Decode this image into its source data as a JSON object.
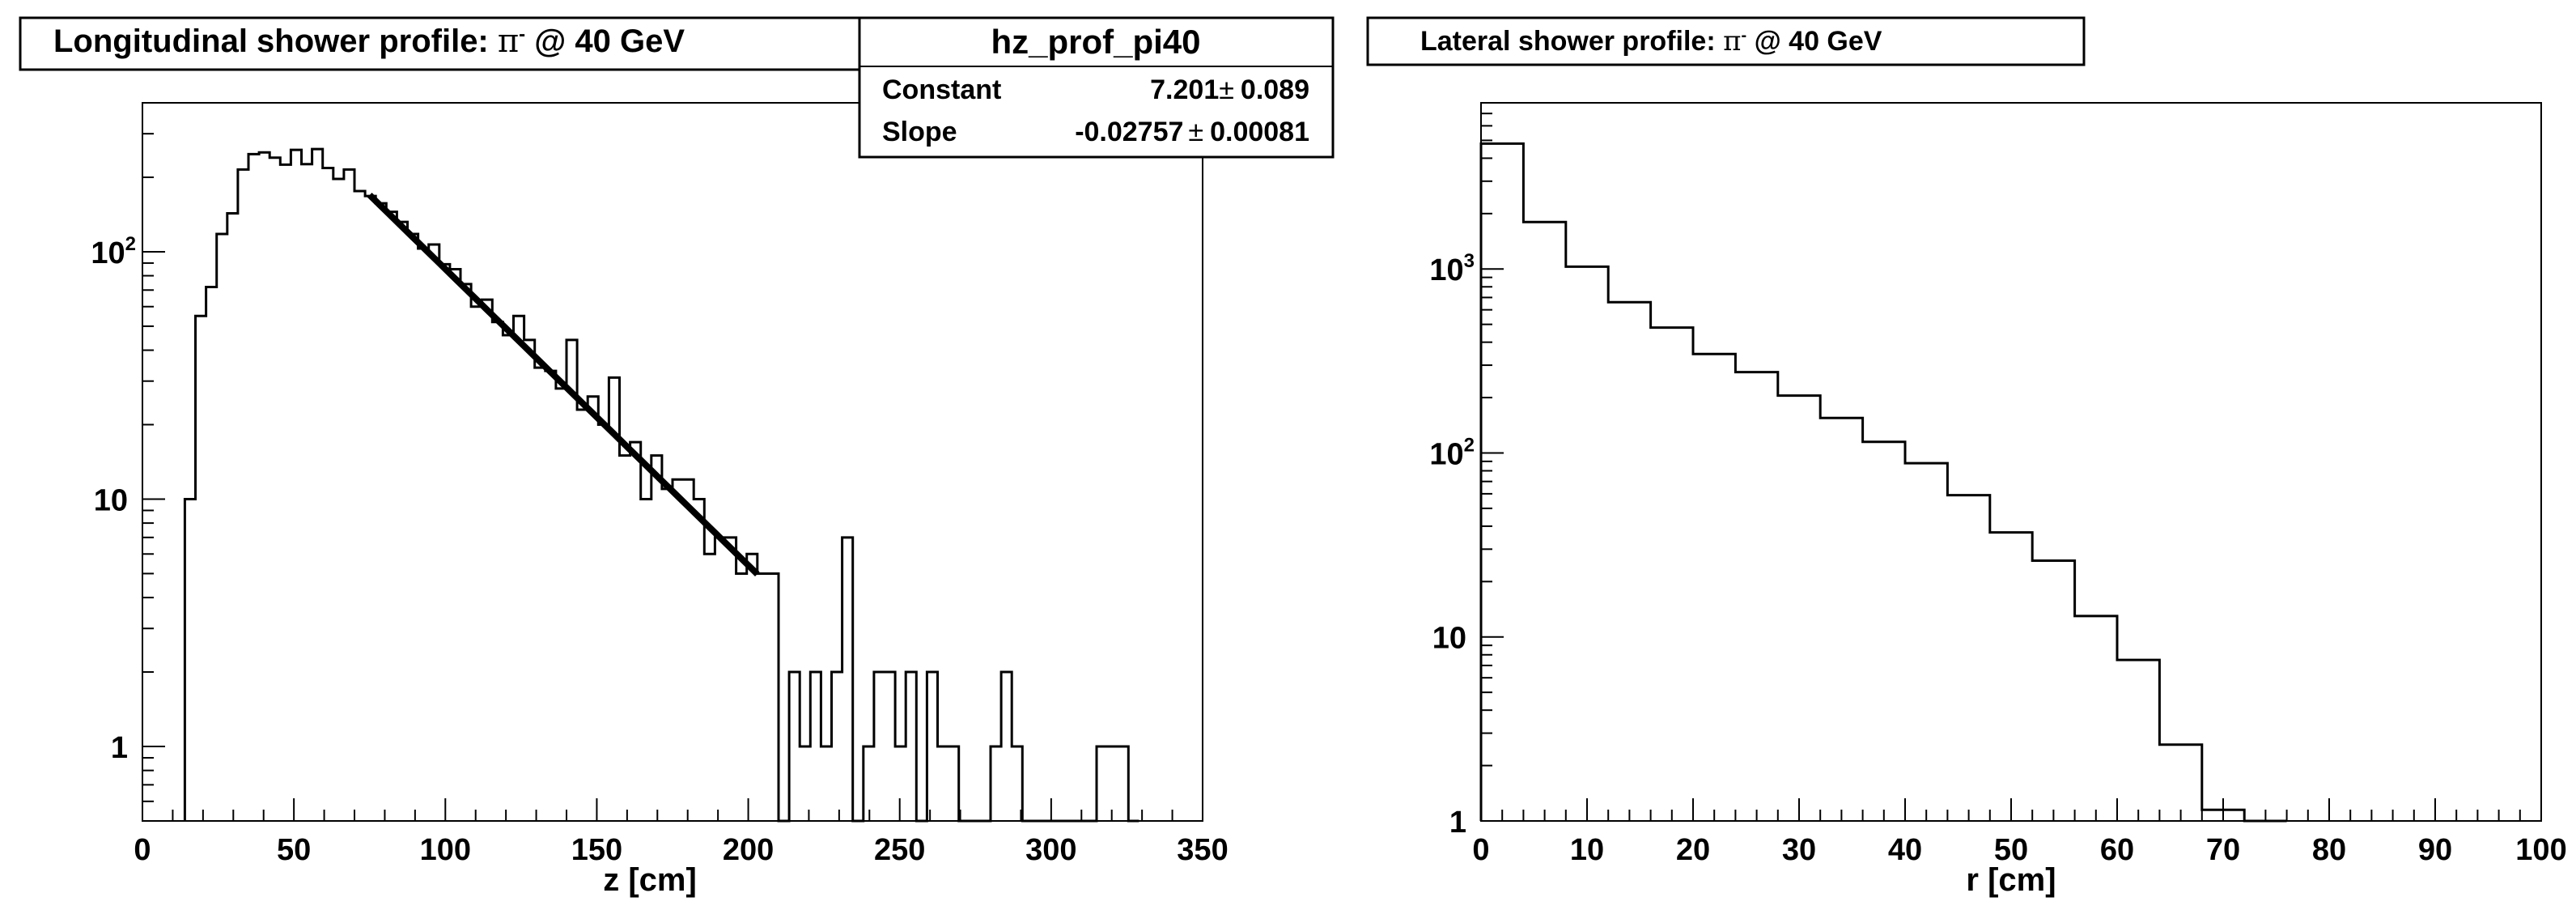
{
  "colors": {
    "line": "#000000",
    "background": "#ffffff"
  },
  "chart_data": [
    {
      "type": "histogram",
      "title": "Longitudinal shower profile: π⁻ @ 40 GeV",
      "title_parts": {
        "prefix": "Longitudinal shower profile: ",
        "particle": "π",
        "charge": "-",
        "suffix": " @ 40 GeV"
      },
      "xlabel": "z [cm]",
      "ylabel": "",
      "xlim": [
        0,
        350
      ],
      "ylim": [
        0.5,
        400
      ],
      "yscale": "log",
      "grid": false,
      "legend": "none",
      "x_ticks": [
        "0",
        "50",
        "100",
        "150",
        "200",
        "250",
        "300",
        "350"
      ],
      "y_ticks": [
        {
          "base": "1",
          "exp": ""
        },
        {
          "base": "10",
          "exp": ""
        },
        {
          "base": "10",
          "exp": "2"
        }
      ],
      "bin_width": 3.5,
      "bins": [
        [
          14,
          10
        ],
        [
          17.5,
          55
        ],
        [
          21,
          72
        ],
        [
          24.5,
          118
        ],
        [
          28,
          143
        ],
        [
          31.5,
          215
        ],
        [
          35,
          248
        ],
        [
          38.5,
          252
        ],
        [
          42,
          240
        ],
        [
          45.5,
          225
        ],
        [
          49,
          258
        ],
        [
          52.5,
          226
        ],
        [
          56,
          260
        ],
        [
          59.5,
          218
        ],
        [
          63,
          197
        ],
        [
          66.5,
          215
        ],
        [
          70,
          176
        ],
        [
          73.5,
          168
        ],
        [
          77,
          157
        ],
        [
          80.5,
          145
        ],
        [
          84,
          132
        ],
        [
          87.5,
          118
        ],
        [
          91,
          103
        ],
        [
          94.5,
          107
        ],
        [
          98,
          89
        ],
        [
          101.5,
          85
        ],
        [
          105,
          74
        ],
        [
          108.5,
          60
        ],
        [
          112,
          64
        ],
        [
          115.5,
          52
        ],
        [
          119,
          46
        ],
        [
          122.5,
          55
        ],
        [
          126,
          44
        ],
        [
          129.5,
          34
        ],
        [
          133,
          33
        ],
        [
          136.5,
          28
        ],
        [
          140,
          44
        ],
        [
          143.5,
          23
        ],
        [
          147,
          26
        ],
        [
          150.5,
          20
        ],
        [
          154,
          31
        ],
        [
          157.5,
          15
        ],
        [
          161,
          17
        ],
        [
          164.5,
          10
        ],
        [
          168,
          15
        ],
        [
          171.5,
          11
        ],
        [
          175,
          12
        ],
        [
          178.5,
          12
        ],
        [
          182,
          10
        ],
        [
          185.5,
          6
        ],
        [
          189,
          7
        ],
        [
          192.5,
          7
        ],
        [
          196,
          5
        ],
        [
          199.5,
          6
        ],
        [
          203,
          5
        ],
        [
          206.5,
          5
        ],
        [
          210,
          0
        ],
        [
          213.5,
          2
        ],
        [
          217,
          1
        ],
        [
          220.5,
          2
        ],
        [
          224,
          1
        ],
        [
          227.5,
          2
        ],
        [
          231,
          7
        ],
        [
          234.5,
          0
        ],
        [
          238,
          1
        ],
        [
          241.5,
          2
        ],
        [
          245,
          2
        ],
        [
          248.5,
          1
        ],
        [
          252,
          2
        ],
        [
          255.5,
          0
        ],
        [
          259,
          2
        ],
        [
          262.5,
          1
        ],
        [
          266,
          1
        ],
        [
          269.5,
          0
        ],
        [
          273,
          0
        ],
        [
          276.5,
          0
        ],
        [
          280,
          1
        ],
        [
          283.5,
          2
        ],
        [
          287,
          1
        ],
        [
          290.5,
          0
        ],
        [
          294,
          0
        ],
        [
          297.5,
          0
        ],
        [
          301,
          0
        ],
        [
          304.5,
          0
        ],
        [
          308,
          0
        ],
        [
          311.5,
          0
        ],
        [
          315,
          1
        ],
        [
          318.5,
          1
        ],
        [
          322,
          1
        ],
        [
          325.5,
          0
        ]
      ],
      "fit": {
        "function": "expo",
        "x_range": [
          75,
          203
        ],
        "constant": 7.201,
        "slope": -0.02757
      },
      "stats_box": {
        "name": "hz_prof_pi40",
        "rows": [
          {
            "label": "Constant",
            "value": "7.201",
            "pm": "±",
            "error": "0.089"
          },
          {
            "label": "Slope",
            "value": "-0.02757",
            "pm": "±",
            "error": "0.00081"
          }
        ]
      }
    },
    {
      "type": "histogram",
      "title": "Lateral shower profile: π⁻ @ 40 GeV",
      "title_parts": {
        "prefix": "Lateral shower profile: ",
        "particle": "π",
        "charge": "-",
        "suffix": " @ 40 GeV"
      },
      "xlabel": "r [cm]",
      "ylabel": "",
      "xlim": [
        0,
        100
      ],
      "ylim": [
        1,
        8000
      ],
      "yscale": "log",
      "grid": false,
      "legend": "none",
      "x_ticks": [
        "0",
        "10",
        "20",
        "30",
        "40",
        "50",
        "60",
        "70",
        "80",
        "90",
        "100"
      ],
      "y_ticks": [
        {
          "base": "1",
          "exp": ""
        },
        {
          "base": "10",
          "exp": ""
        },
        {
          "base": "10",
          "exp": "2"
        },
        {
          "base": "10",
          "exp": "3"
        }
      ],
      "bin_width": 4,
      "bins": [
        [
          0,
          4800
        ],
        [
          4,
          1800
        ],
        [
          8,
          1030
        ],
        [
          12,
          660
        ],
        [
          16,
          480
        ],
        [
          20,
          345
        ],
        [
          24,
          275
        ],
        [
          28,
          205
        ],
        [
          32,
          155
        ],
        [
          36,
          115
        ],
        [
          40,
          88
        ],
        [
          44,
          59
        ],
        [
          48,
          37
        ],
        [
          52,
          26
        ],
        [
          56,
          13
        ],
        [
          60,
          7.5
        ],
        [
          64,
          2.6
        ],
        [
          68,
          1.15
        ],
        [
          72,
          0.5
        ]
      ]
    }
  ]
}
